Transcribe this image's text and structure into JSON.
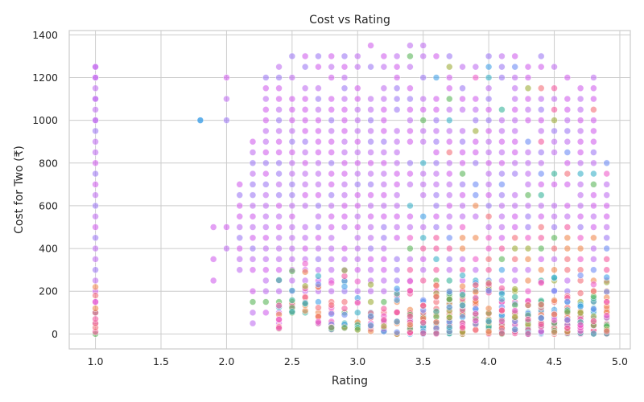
{
  "chart_data": {
    "type": "scatter",
    "title": "Cost vs Rating",
    "xlabel": "Rating",
    "ylabel": "Cost for Two (₹)",
    "xlim": [
      0.8,
      5.08
    ],
    "ylim": [
      -70,
      1420
    ],
    "xticks": [
      1.0,
      1.5,
      2.0,
      2.5,
      3.0,
      3.5,
      4.0,
      4.5,
      5.0
    ],
    "xtick_labels": [
      "1.0",
      "1.5",
      "2.0",
      "2.5",
      "3.0",
      "3.5",
      "4.0",
      "4.5",
      "5.0"
    ],
    "yticks": [
      0,
      200,
      400,
      600,
      800,
      1000,
      1200,
      1400
    ],
    "ytick_labels": [
      "0",
      "200",
      "400",
      "600",
      "800",
      "1000",
      "1200",
      "1400"
    ],
    "grid": true,
    "legend": "none",
    "marker_alpha": 0.6,
    "palette": [
      "#bf6ff0",
      "#d060ec",
      "#9f7af3",
      "#ee5ecb",
      "#f35a9e",
      "#f46f7a",
      "#f08a52",
      "#9fae3a",
      "#5bb55a",
      "#39b49b",
      "#3ab0c8",
      "#45a1e8",
      "#6e8cf5"
    ],
    "columns": [
      {
        "x": 1.0,
        "ymax": 1250,
        "dense": true
      },
      {
        "x": 1.8,
        "ymax": 1000,
        "ymin": 1000,
        "sparse": true
      },
      {
        "x": 1.9,
        "ymax": 500,
        "ymin": 250,
        "sparse": true
      },
      {
        "x": 2.0,
        "ymax": 1200,
        "ymin": 400,
        "sparse": true
      },
      {
        "x": 2.1,
        "ymax": 700,
        "ymin": 300
      },
      {
        "x": 2.2,
        "ymax": 900,
        "ymin": 30
      },
      {
        "x": 2.3,
        "ymax": 1200,
        "ymin": 100
      },
      {
        "x": 2.4,
        "ymax": 1300,
        "ymin": 20
      },
      {
        "x": 2.5,
        "ymax": 1300,
        "ymin": 100
      },
      {
        "x": 2.6,
        "ymax": 1300,
        "ymin": 100
      },
      {
        "x": 2.7,
        "ymax": 1300,
        "ymin": 50
      },
      {
        "x": 2.8,
        "ymax": 1300,
        "ymin": 20
      },
      {
        "x": 2.9,
        "ymax": 1300,
        "ymin": 20
      },
      {
        "x": 3.0,
        "ymax": 1300,
        "ymin": 20
      },
      {
        "x": 3.1,
        "ymax": 1350,
        "ymin": 10
      },
      {
        "x": 3.2,
        "ymax": 1300,
        "ymin": 10
      },
      {
        "x": 3.3,
        "ymax": 1300,
        "ymin": 0
      },
      {
        "x": 3.4,
        "ymax": 1350,
        "ymin": 0
      },
      {
        "x": 3.5,
        "ymax": 1350,
        "ymin": 0
      },
      {
        "x": 3.6,
        "ymax": 1300,
        "ymin": 0
      },
      {
        "x": 3.7,
        "ymax": 1300,
        "ymin": 0
      },
      {
        "x": 3.8,
        "ymax": 1300,
        "ymin": 0
      },
      {
        "x": 3.9,
        "ymax": 1300,
        "ymin": 0
      },
      {
        "x": 4.0,
        "ymax": 1350,
        "ymin": 0
      },
      {
        "x": 4.1,
        "ymax": 1300,
        "ymin": 0
      },
      {
        "x": 4.2,
        "ymax": 1350,
        "ymin": 0
      },
      {
        "x": 4.3,
        "ymax": 1300,
        "ymin": 0
      },
      {
        "x": 4.4,
        "ymax": 1300,
        "ymin": 0
      },
      {
        "x": 4.5,
        "ymax": 1300,
        "ymin": 0
      },
      {
        "x": 4.6,
        "ymax": 1200,
        "ymin": 0
      },
      {
        "x": 4.7,
        "ymax": 1200,
        "ymin": 0
      },
      {
        "x": 4.8,
        "ymax": 1200,
        "ymin": 0
      },
      {
        "x": 4.9,
        "ymax": 800,
        "ymin": 0
      }
    ]
  }
}
